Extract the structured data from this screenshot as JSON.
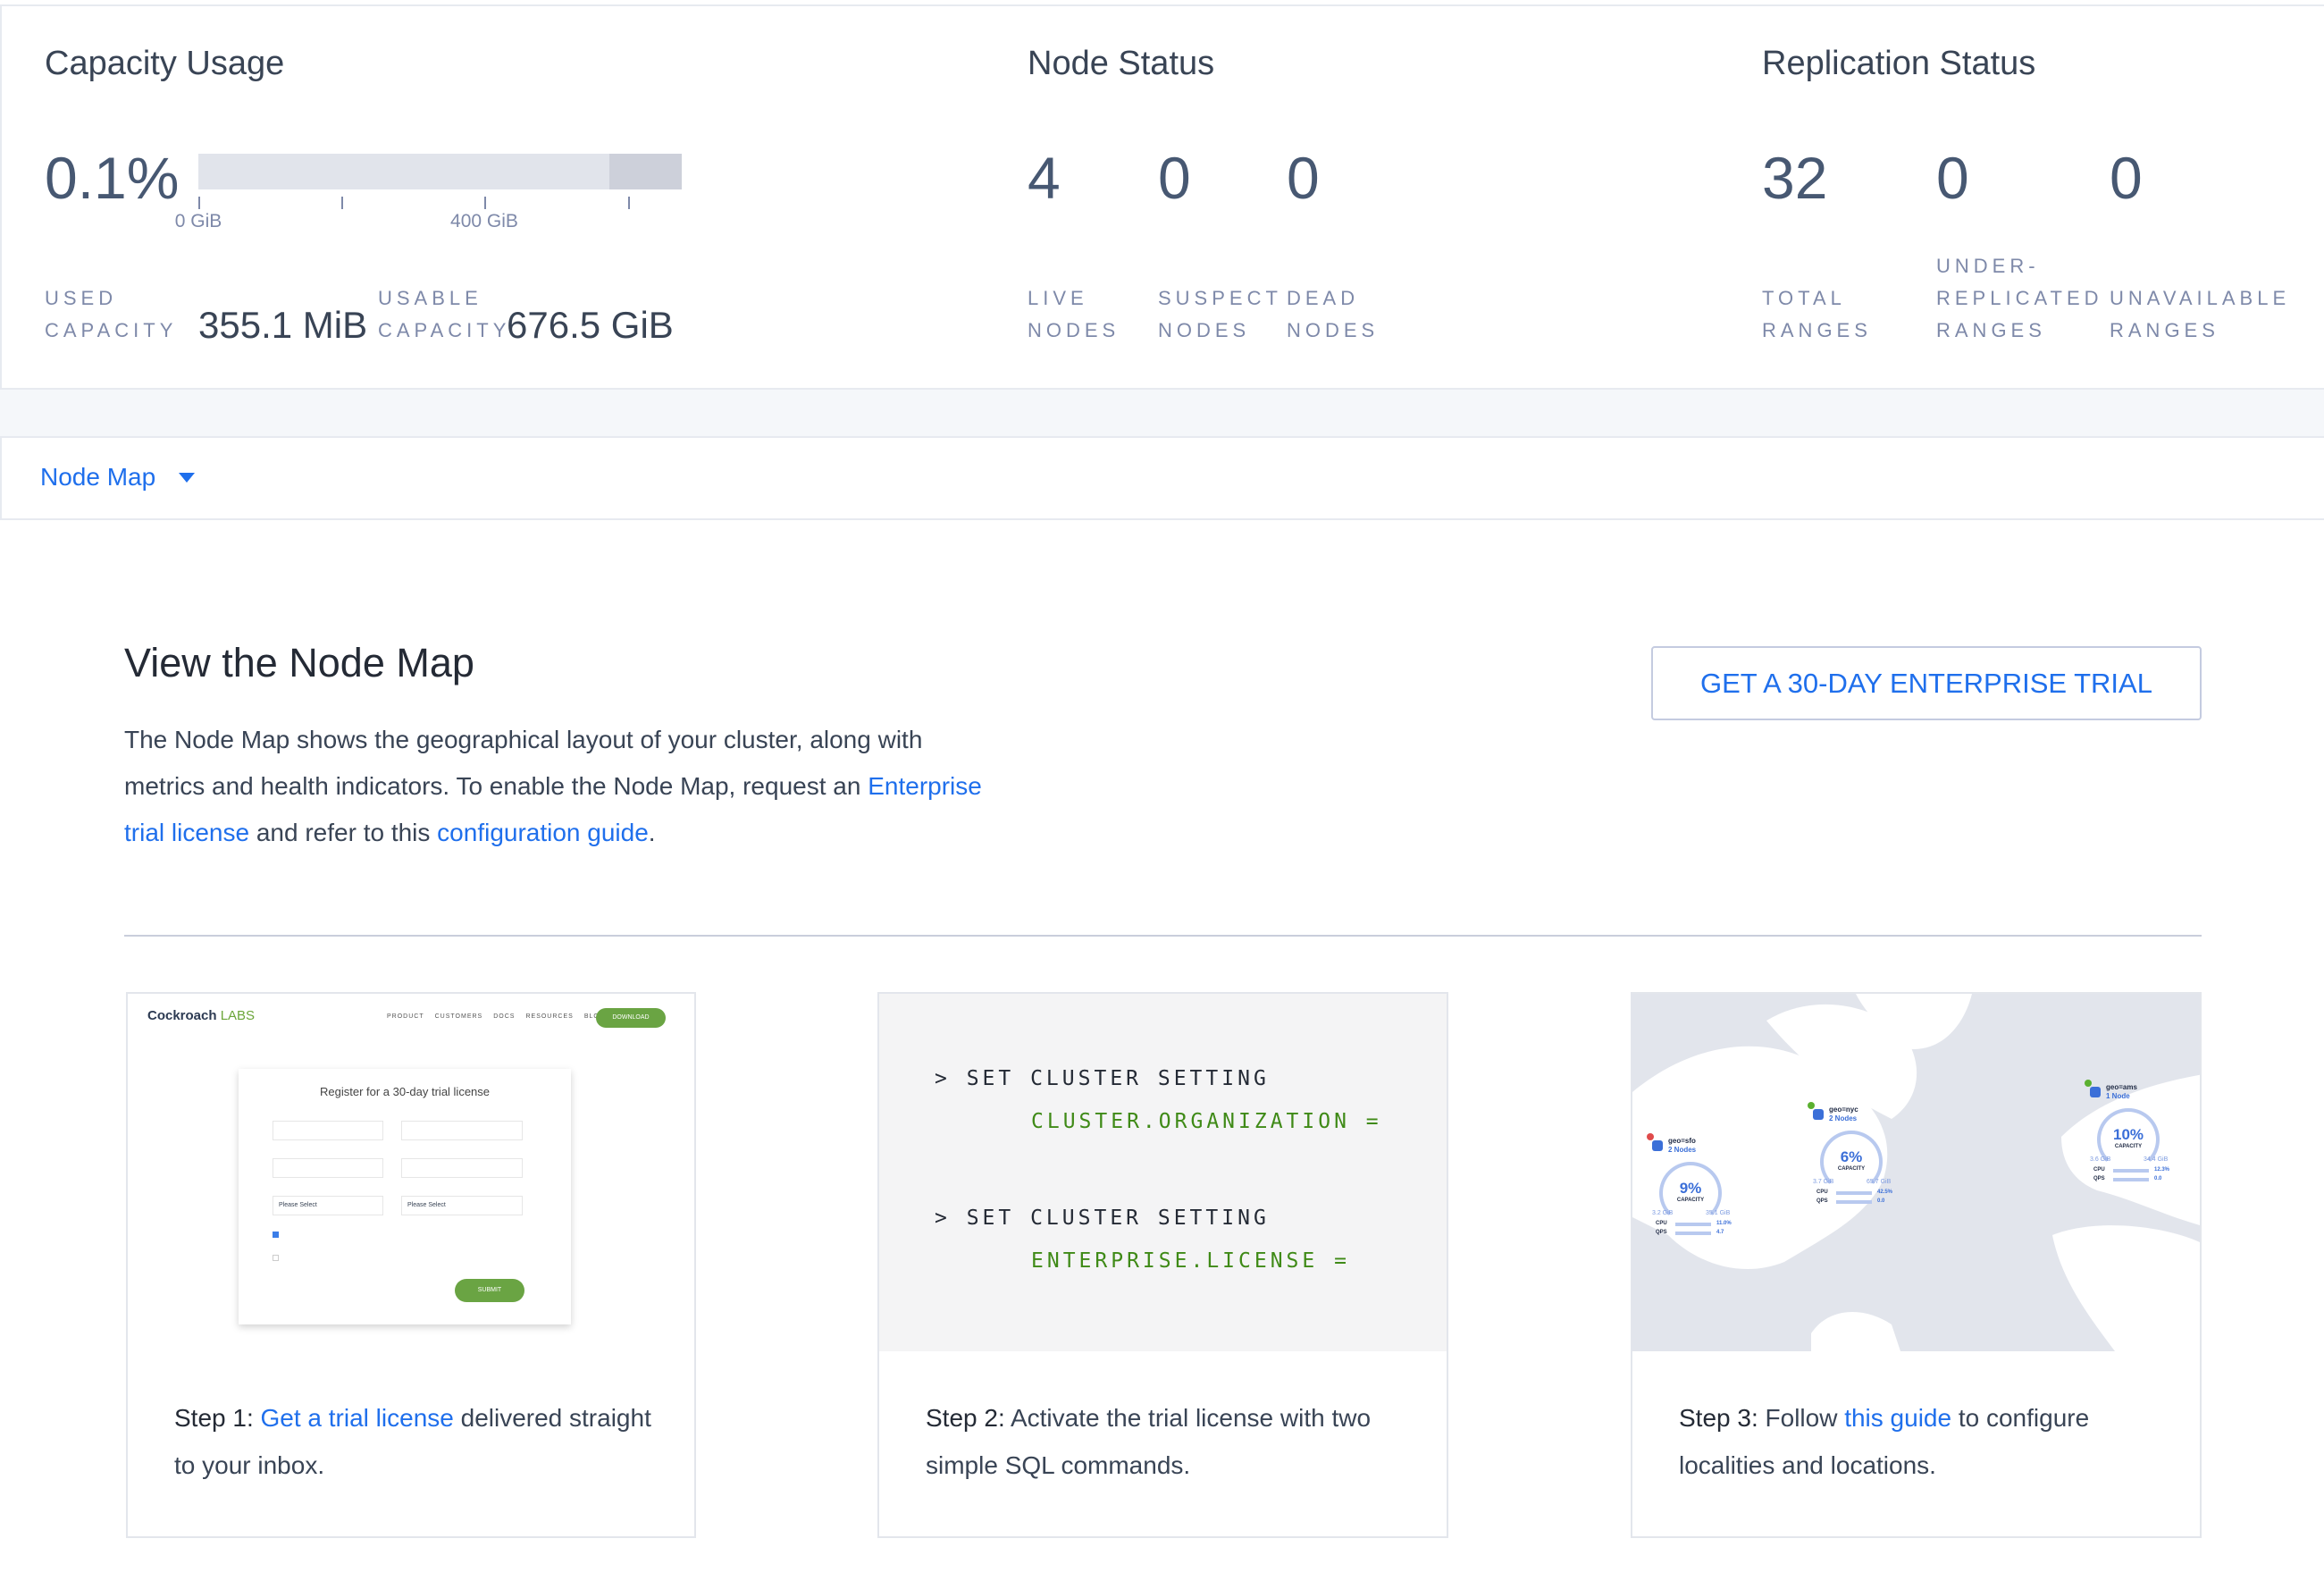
{
  "capacity": {
    "title": "Capacity Usage",
    "percent": "0.1%",
    "usage_fraction": 0.001,
    "axis_ticks": [
      "0 GiB",
      "400 GiB"
    ],
    "used_label_1": "USED",
    "used_label_2": "CAPACITY",
    "used_value": "355.1 MiB",
    "usable_label_1": "USABLE",
    "usable_label_2": "CAPACITY",
    "usable_value": "676.5 GiB"
  },
  "node_status": {
    "title": "Node Status",
    "stats": [
      {
        "value": "4",
        "label_1": "LIVE",
        "label_2": "NODES"
      },
      {
        "value": "0",
        "label_1": "SUSPECT",
        "label_2": "NODES"
      },
      {
        "value": "0",
        "label_1": "DEAD",
        "label_2": "NODES"
      }
    ]
  },
  "replication_status": {
    "title": "Replication Status",
    "stats": [
      {
        "value": "32",
        "label_0": "",
        "label_1": "TOTAL",
        "label_2": "RANGES"
      },
      {
        "value": "0",
        "label_0": "UNDER-",
        "label_1": "REPLICATED",
        "label_2": "RANGES"
      },
      {
        "value": "0",
        "label_0": "",
        "label_1": "UNAVAILABLE",
        "label_2": "RANGES"
      }
    ]
  },
  "dropdown": {
    "selected": "Node Map",
    "icon": "caret-down-icon"
  },
  "main": {
    "title": "View the Node Map",
    "para_1": "The Node Map shows the geographical layout of your cluster, along with metrics and health indicators. To enable the Node Map, request an ",
    "link_1": "Enterprise trial license",
    "para_2": " and refer to this ",
    "link_2": "configuration guide",
    "para_3": ".",
    "trial_button": "GET A 30-DAY ENTERPRISE TRIAL"
  },
  "steps": [
    {
      "label": "Step 1:",
      "link": "Get a trial license",
      "text": " delivered straight to your inbox.",
      "illustration": {
        "logo": "Cockroach",
        "logo_suffix": "LABS",
        "nav": [
          "PRODUCT",
          "CUSTOMERS",
          "DOCS",
          "RESOURCES",
          "BLOG"
        ],
        "download": "DOWNLOAD",
        "form_title": "Register for a 30-day trial license",
        "select_placeholder": "Please Select",
        "submit": "SUBMIT"
      }
    },
    {
      "label": "Step 2:",
      "text": " Activate the trial license with two simple SQL commands.",
      "code": [
        {
          "cmd": "> SET CLUSTER SETTING",
          "arg": "CLUSTER.ORGANIZATION ="
        },
        {
          "cmd": "> SET CLUSTER SETTING",
          "arg": "ENTERPRISE.LICENSE ="
        }
      ]
    },
    {
      "label": "Step 3:",
      "pre": " Follow ",
      "link": "this guide",
      "text": " to configure localities and locations.",
      "map_nodes": [
        {
          "name": "geo=sfo",
          "nodes": "2 Nodes",
          "capacity": "9%",
          "used": "3.2 GiB",
          "total": "35.1 GiB",
          "cpu": "11.0%",
          "qps": "4.7",
          "status": "alert"
        },
        {
          "name": "geo=nyc",
          "nodes": "2 Nodes",
          "capacity": "6%",
          "used": "3.7 GiB",
          "total": "65.7 GiB",
          "cpu": "42.5%",
          "qps": "0.0",
          "status": "ok"
        },
        {
          "name": "geo=ams",
          "nodes": "1 Node",
          "capacity": "10%",
          "used": "3.6 GiB",
          "total": "34.4 GiB",
          "cpu": "12.3%",
          "qps": "0.0",
          "status": "ok"
        }
      ],
      "capacity_label": "CAPACITY",
      "cpu_label": "CPU",
      "qps_label": "QPS"
    }
  ],
  "colors": {
    "accent": "#1f6fec",
    "text": "#394455",
    "muted": "#7e89a9",
    "green": "#3f8a17"
  }
}
